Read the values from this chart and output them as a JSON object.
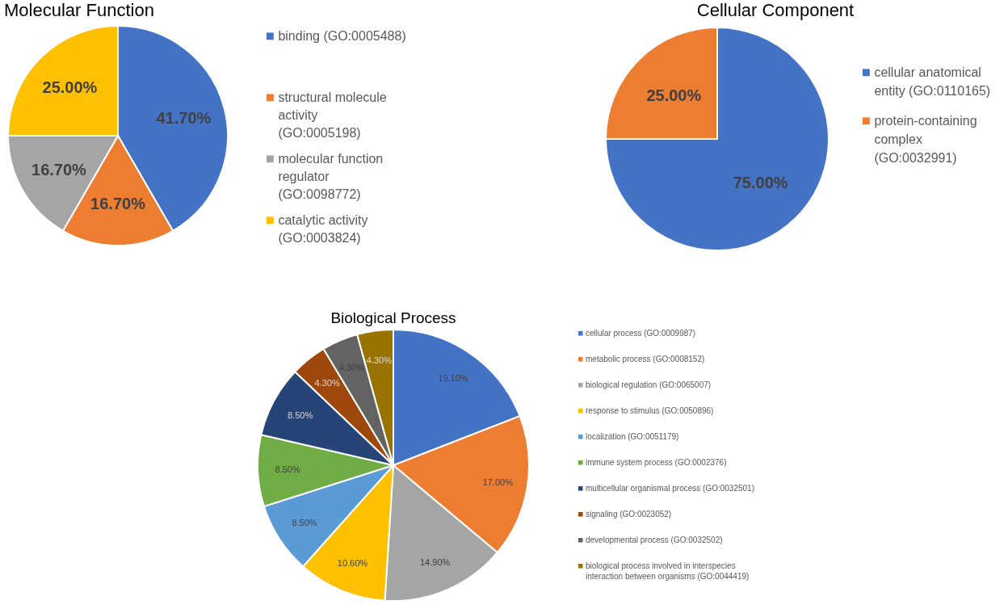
{
  "chart_data": [
    {
      "type": "pie",
      "title": "Molecular Function",
      "legend": "right",
      "categories": [
        "binding (GO:0005488)",
        "structural molecule activity (GO:0005198)",
        "molecular function regulator (GO:0098772)",
        "catalytic activity (GO:0003824)"
      ],
      "values": [
        41.7,
        16.7,
        16.7,
        25.0
      ],
      "value_labels": [
        "41.70%",
        "16.70%",
        "16.70%",
        "25.00%"
      ],
      "colors": [
        "#4472c4",
        "#ed7d31",
        "#a5a5a5",
        "#ffc000"
      ]
    },
    {
      "type": "pie",
      "title": "Cellular Component",
      "legend": "right",
      "categories": [
        "cellular anatomical entity (GO:0110165)",
        "protein-containing complex (GO:0032991)"
      ],
      "values": [
        75.0,
        25.0
      ],
      "value_labels": [
        "75.00%",
        "25.00%"
      ],
      "colors": [
        "#4472c4",
        "#ed7d31"
      ]
    },
    {
      "type": "pie",
      "title": "Biological Process",
      "legend": "right",
      "categories": [
        "cellular process (GO:0009987)",
        "metabolic process (GO:0008152)",
        "biological regulation (GO:0065007)",
        "response to stimulus (GO:0050896)",
        "localization (GO:0051179)",
        "immune system process (GO:0002376)",
        "multicellular organismal process (GO:0032501)",
        "signaling (GO:0023052)",
        "developmental process (GO:0032502)",
        "biological process involved in interspecies interaction between organisms (GO:0044419)"
      ],
      "values": [
        19.1,
        17.0,
        14.9,
        10.6,
        8.5,
        8.5,
        8.5,
        4.3,
        4.3,
        4.3
      ],
      "value_labels": [
        "19.10%",
        "17.00%",
        "14.90%",
        "10.60%",
        "8.50%",
        "8.50%",
        "8.50%",
        "4.30%",
        "4.30%",
        "4.30%"
      ],
      "colors": [
        "#4472c4",
        "#ed7d31",
        "#a5a5a5",
        "#ffc000",
        "#5b9bd5",
        "#70ad47",
        "#264478",
        "#9e480e",
        "#636363",
        "#997300"
      ]
    }
  ]
}
